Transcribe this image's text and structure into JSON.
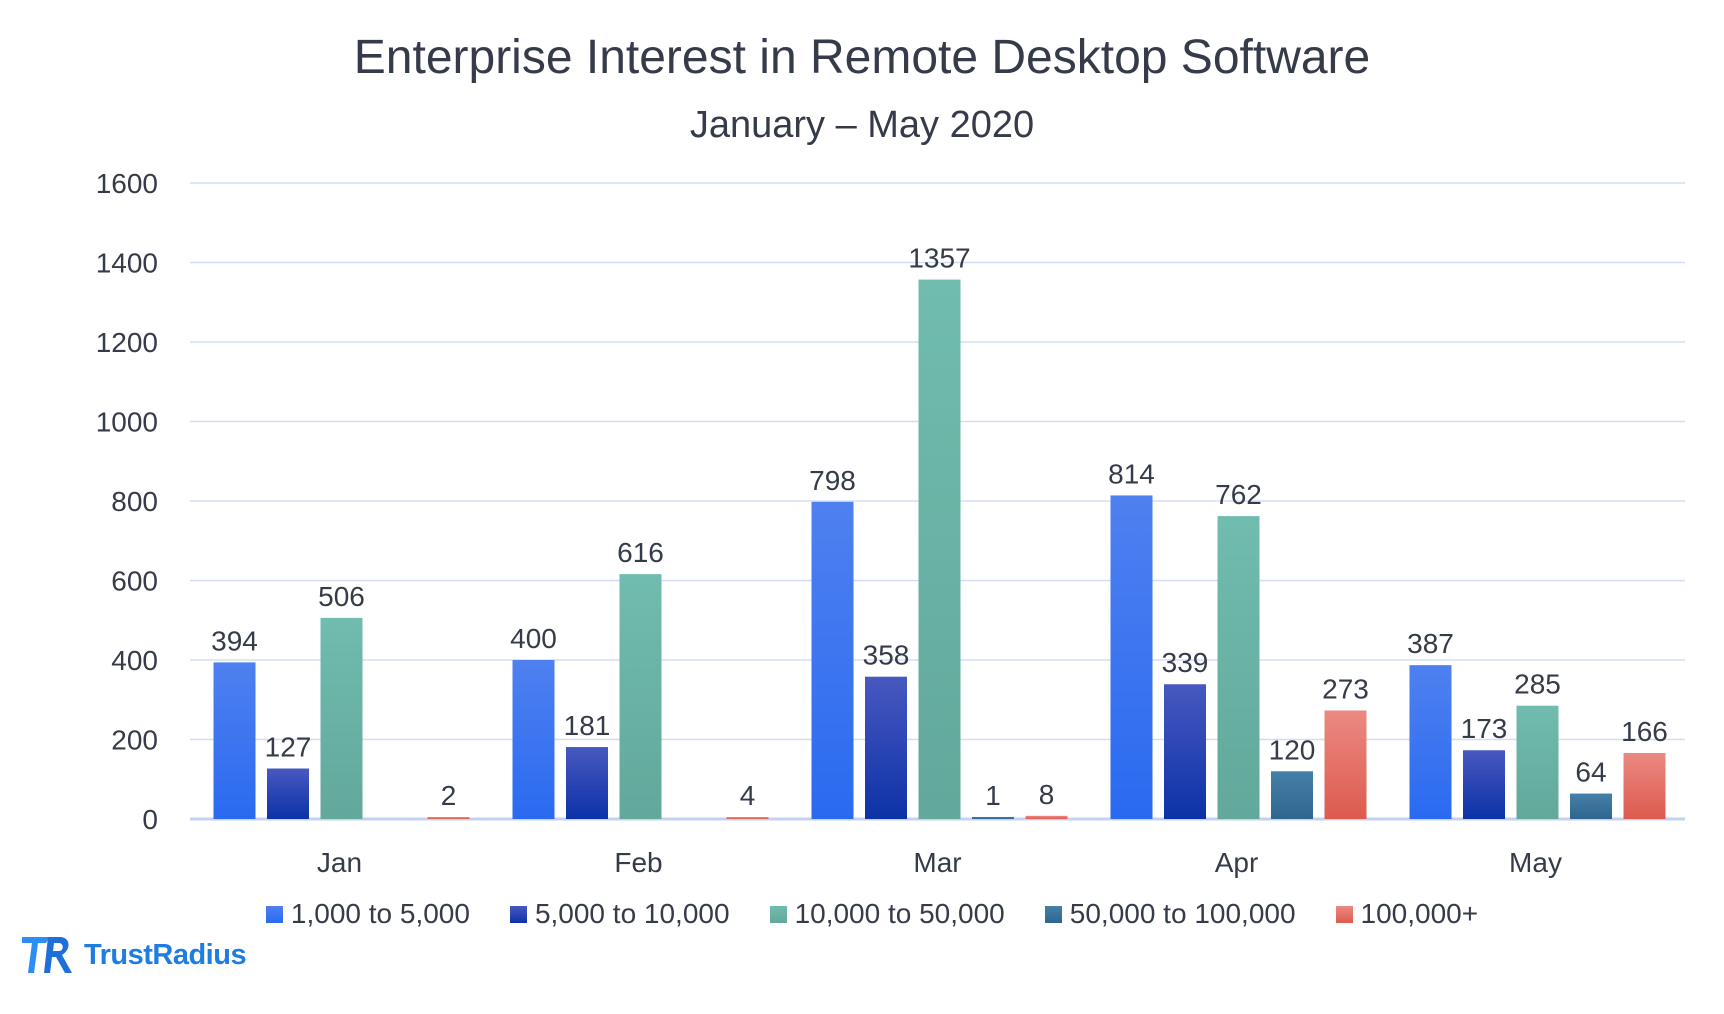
{
  "chart_data": {
    "type": "bar",
    "title": "Enterprise Interest in Remote Desktop Software",
    "subtitle": "January – May 2020",
    "categories": [
      "Jan",
      "Feb",
      "Mar",
      "Apr",
      "May"
    ],
    "ylim": [
      0,
      1600
    ],
    "yticks": [
      0,
      200,
      400,
      600,
      800,
      1000,
      1200,
      1400,
      1600
    ],
    "grid": true,
    "legend_position": "bottom",
    "series": [
      {
        "name": "1,000 to 5,000",
        "values": [
          394,
          400,
          798,
          814,
          387
        ],
        "color": "#2a6af0",
        "color_top": "#4f80f0"
      },
      {
        "name": "5,000 to 10,000",
        "values": [
          127,
          181,
          358,
          339,
          173
        ],
        "color": "#0c32a8",
        "color_top": "#4858c0"
      },
      {
        "name": "10,000 to 50,000",
        "values": [
          506,
          616,
          1357,
          762,
          285
        ],
        "color": "#62a89b",
        "color_top": "#70bcae"
      },
      {
        "name": "50,000 to 100,000",
        "values": [
          null,
          null,
          1,
          120,
          64
        ],
        "color": "#2e6690",
        "color_top": "#4580a8"
      },
      {
        "name": "100,000+",
        "values": [
          2,
          4,
          8,
          273,
          166
        ],
        "color": "#dd5a4e",
        "color_top": "#eb8a82"
      }
    ]
  },
  "logo": {
    "text": "TrustRadius"
  }
}
